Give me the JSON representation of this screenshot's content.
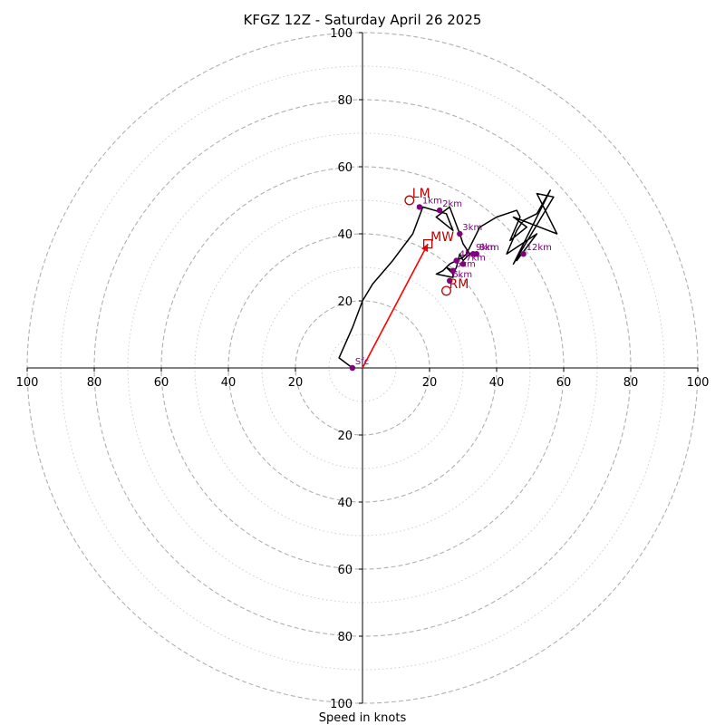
{
  "chart_data": {
    "type": "hodograph",
    "title": "KFGZ 12Z - Saturday April 26 2025",
    "xlabel": "Speed in knots",
    "range_max": 100,
    "ring_major": [
      20,
      40,
      60,
      80,
      100
    ],
    "ring_minor": [
      10,
      30,
      50,
      70,
      90
    ],
    "tick_labels": {
      "left": [
        "100",
        "80",
        "60",
        "40",
        "20"
      ],
      "right": [
        "20",
        "40",
        "60",
        "80",
        "100"
      ],
      "up": [
        "20",
        "40",
        "60",
        "80",
        "100"
      ],
      "down": [
        "20",
        "40",
        "60",
        "80",
        "100"
      ]
    },
    "grid": true,
    "wind_profile": {
      "u": [
        -3,
        -7,
        -3,
        0,
        3,
        9,
        15,
        18,
        25,
        27,
        22,
        26,
        29,
        30,
        32,
        30,
        29,
        28,
        27,
        25,
        27,
        27,
        22,
        24,
        26,
        30,
        31,
        32,
        35,
        40,
        46,
        47,
        44,
        49,
        45,
        58,
        52,
        57,
        45,
        56,
        52,
        48,
        46,
        43,
        52,
        46,
        47
      ],
      "v": [
        0,
        3,
        12,
        20,
        25,
        32,
        40,
        48,
        46,
        41,
        45,
        48,
        40,
        37,
        34,
        32,
        34,
        30,
        28,
        30,
        29,
        27,
        28,
        29,
        31,
        33,
        34,
        36,
        42,
        45,
        47,
        45,
        38,
        42,
        45,
        40,
        52,
        51,
        31,
        53,
        46,
        44,
        41,
        34,
        40,
        32,
        34
      ]
    },
    "height_markers": [
      {
        "label": "Sfc",
        "u": -3,
        "v": 0
      },
      {
        "label": "1km",
        "u": 17,
        "v": 48
      },
      {
        "label": "2km",
        "u": 23,
        "v": 47
      },
      {
        "label": "3km",
        "u": 29,
        "v": 40
      },
      {
        "label": "4km",
        "u": 28,
        "v": 32
      },
      {
        "label": "5km",
        "u": 27,
        "v": 29
      },
      {
        "label": "6km",
        "u": 26,
        "v": 26
      },
      {
        "label": "7km",
        "u": 30,
        "v": 31
      },
      {
        "label": "8km",
        "u": 34,
        "v": 34
      },
      {
        "label": "9km",
        "u": 33,
        "v": 34
      },
      {
        "label": "12km",
        "u": 48,
        "v": 34
      }
    ],
    "motion_markers": [
      {
        "label": "LM",
        "u": 14,
        "v": 50,
        "shape": "circle"
      },
      {
        "label": "MW",
        "u": 19.5,
        "v": 37,
        "shape": "square"
      },
      {
        "label": "RM",
        "u": 25,
        "v": 23,
        "shape": "circle"
      }
    ],
    "shear_vector": {
      "u": 19.5,
      "v": 37
    },
    "colors": {
      "profile": "#000000",
      "markers": "#800080",
      "motion": "#c00000",
      "shear_arrow": "#ff0000",
      "grid": "#b0b0b0"
    }
  }
}
